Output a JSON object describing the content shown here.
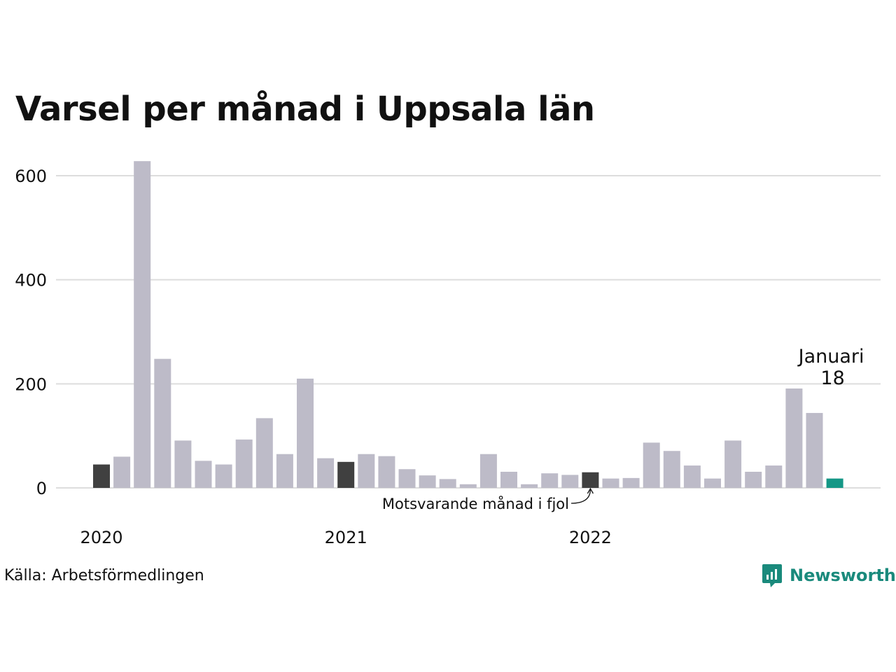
{
  "title": "Varsel per månad i Uppsala län",
  "source": "Källa: Arbetsförmedlingen",
  "brand": {
    "name": "Newsworthy",
    "color": "#1a8a7c",
    "icon": "newsworthy-logo-icon"
  },
  "colors": {
    "default": "#bdbbc8",
    "comparison": "#404040",
    "current": "#159786",
    "grid": "#dddddd"
  },
  "chart_data": {
    "type": "bar",
    "title": "Varsel per månad i Uppsala län",
    "xlabel": "",
    "ylabel": "",
    "ylim": [
      0,
      630
    ],
    "yticks": [
      0,
      200,
      400,
      600
    ],
    "grid": true,
    "year_labels": [
      {
        "label": "2020",
        "index": 0
      },
      {
        "label": "2021",
        "index": 12
      },
      {
        "label": "2022",
        "index": 24
      }
    ],
    "values": [
      45,
      60,
      628,
      248,
      91,
      52,
      45,
      93,
      134,
      65,
      210,
      57,
      50,
      65,
      61,
      36,
      24,
      17,
      7,
      65,
      31,
      7,
      28,
      25,
      30,
      18,
      19,
      87,
      71,
      43,
      18,
      91,
      31,
      43,
      191,
      144,
      18
    ],
    "highlight_comparison": [
      0,
      12,
      24
    ],
    "highlight_current": 36,
    "annotations": {
      "current_label": "Januari",
      "current_value": "18",
      "comparison_label": "Motsvarande månad i fjol"
    }
  }
}
